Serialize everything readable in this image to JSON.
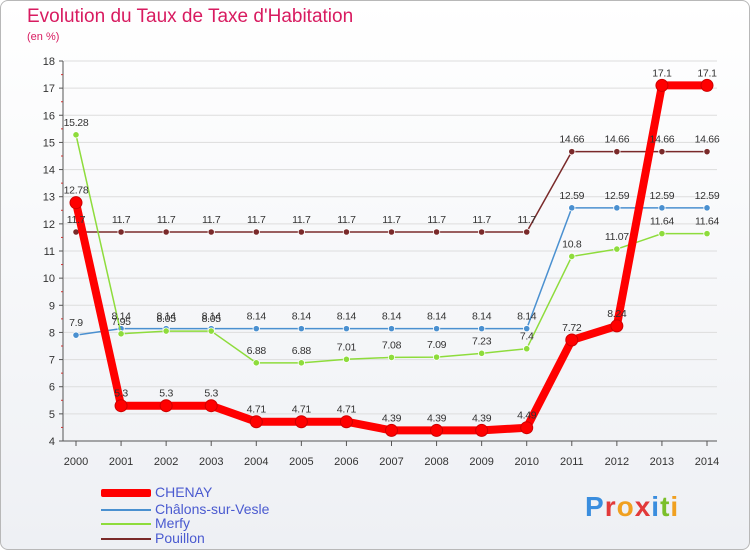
{
  "header": {
    "title": "Evolution du Taux de Taxe d'Habitation",
    "unit": "(en %)"
  },
  "logo": {
    "text": "Proxiti"
  },
  "colors": {
    "title": "#d81b60",
    "legend_text": "#4a5ad0",
    "grid": "#dddddd",
    "axis": "#555555"
  },
  "chart_data": {
    "type": "line",
    "title": "Evolution du Taux de Taxe d'Habitation",
    "ylabel": "(en %)",
    "xlabel": "",
    "x": [
      "2000",
      "2001",
      "2002",
      "2003",
      "2004",
      "2005",
      "2006",
      "2007",
      "2008",
      "2009",
      "2010",
      "2011",
      "2012",
      "2013",
      "2014"
    ],
    "ylim": [
      4,
      18
    ],
    "yticks": [
      4,
      5,
      6,
      7,
      8,
      9,
      10,
      11,
      12,
      13,
      14,
      15,
      16,
      17,
      18
    ],
    "grid": true,
    "legend_position": "bottom-left",
    "series": [
      {
        "name": "CHENAY",
        "color": "#ff0000",
        "values": [
          12.78,
          5.3,
          5.3,
          5.3,
          4.71,
          4.71,
          4.71,
          4.39,
          4.39,
          4.39,
          4.49,
          7.72,
          8.24,
          17.1,
          17.1
        ],
        "labels": [
          "12.78",
          "5.3",
          "5.3",
          "5.3",
          "4.71",
          "4.71",
          "4.71",
          "4.39",
          "4.39",
          "4.39",
          "4.49",
          "7.72",
          "8.24",
          "17.1",
          "17.1"
        ]
      },
      {
        "name": "Châlons-sur-Vesle",
        "color": "#4a90d0",
        "values": [
          7.9,
          8.14,
          8.14,
          8.14,
          8.14,
          8.14,
          8.14,
          8.14,
          8.14,
          8.14,
          8.14,
          12.59,
          12.59,
          12.59,
          12.59
        ],
        "labels": [
          "7.9",
          "8.14",
          "8.14",
          "8.14",
          "8.14",
          "8.14",
          "8.14",
          "8.14",
          "8.14",
          "8.14",
          "8.14",
          "12.59",
          "12.59",
          "12.59",
          "12.59"
        ]
      },
      {
        "name": "Merfy",
        "color": "#8edc3c",
        "values": [
          15.28,
          7.95,
          8.05,
          8.05,
          6.88,
          6.88,
          7.01,
          7.08,
          7.09,
          7.23,
          7.4,
          10.8,
          11.07,
          11.64,
          11.64
        ],
        "labels": [
          "15.28",
          "7.95",
          "8.05",
          "8.05",
          "6.88",
          "6.88",
          "7.01",
          "7.08",
          "7.09",
          "7.23",
          "7.4",
          "10.8",
          "11.07",
          "11.64",
          "11.64"
        ]
      },
      {
        "name": "Pouillon",
        "color": "#7a2a2a",
        "values": [
          11.7,
          11.7,
          11.7,
          11.7,
          11.7,
          11.7,
          11.7,
          11.7,
          11.7,
          11.7,
          11.7,
          14.66,
          14.66,
          14.66,
          14.66
        ],
        "labels": [
          "11.7",
          "11.7",
          "11.7",
          "11.7",
          "11.7",
          "11.7",
          "11.7",
          "11.7",
          "11.7",
          "11.7",
          "11.7",
          "14.66",
          "14.66",
          "14.66",
          "14.66"
        ]
      }
    ]
  }
}
